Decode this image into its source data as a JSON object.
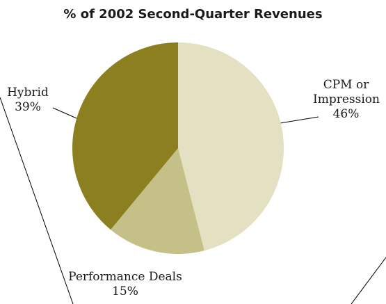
{
  "chart_data": {
    "type": "pie",
    "title": "% of 2002 Second-Quarter Revenues",
    "categories": [
      "CPM or Impression",
      "Performance Deals",
      "Hybrid"
    ],
    "values": [
      46,
      15,
      39
    ],
    "value_labels": [
      "46%",
      "15%",
      "39%"
    ],
    "colors": [
      "#e4e0c2",
      "#c5c087",
      "#8b7f1f"
    ]
  }
}
